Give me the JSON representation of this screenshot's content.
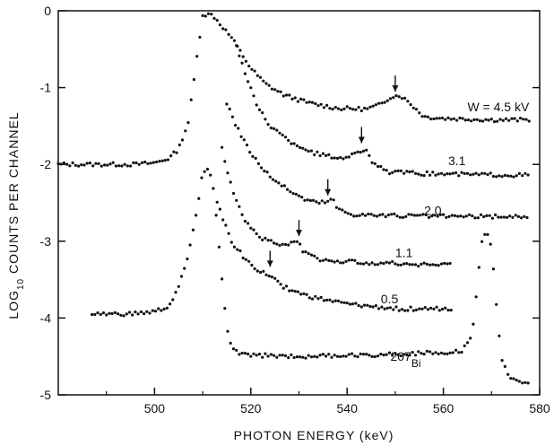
{
  "chart_data": {
    "type": "scatter",
    "xlabel": "PHOTON ENERGY (keV)",
    "ylabel_parts": {
      "prefix": "LOG",
      "subscript": "10",
      "suffix": " COUNTS PER CHANNEL"
    },
    "xlim": [
      480,
      580
    ],
    "ylim": [
      -5,
      0
    ],
    "xticks": [
      500,
      520,
      540,
      560,
      580
    ],
    "yticks": [
      0,
      -1,
      -2,
      -3,
      -4,
      -5
    ],
    "grid": false,
    "series": [
      {
        "label": "W = 4.5 kV",
        "label_at": [
          565,
          -1.25
        ],
        "arrow_x": 550,
        "arrow_tip_y": -1.1,
        "points": [
          [
            480,
            -2.0
          ],
          [
            496,
            -2.0
          ],
          [
            500,
            -1.98
          ],
          [
            503,
            -1.92
          ],
          [
            505,
            -1.8
          ],
          [
            507,
            -1.45
          ],
          [
            508,
            -1.0
          ],
          [
            509,
            -0.5
          ],
          [
            510,
            -0.05
          ],
          [
            512,
            -0.05
          ],
          [
            514,
            -0.2
          ],
          [
            516,
            -0.35
          ],
          [
            518,
            -0.55
          ],
          [
            520,
            -0.75
          ],
          [
            523,
            -0.95
          ],
          [
            527,
            -1.1
          ],
          [
            532,
            -1.2
          ],
          [
            538,
            -1.27
          ],
          [
            544,
            -1.28
          ],
          [
            547,
            -1.22
          ],
          [
            549,
            -1.12
          ],
          [
            551,
            -1.1
          ],
          [
            553,
            -1.2
          ],
          [
            556,
            -1.38
          ],
          [
            560,
            -1.4
          ],
          [
            570,
            -1.42
          ],
          [
            578,
            -1.42
          ]
        ]
      },
      {
        "label": "3.1",
        "label_at": [
          561,
          -1.95
        ],
        "arrow_x": 543,
        "arrow_tip_y": -1.77,
        "points": [
          [
            517,
            -0.45
          ],
          [
            519,
            -0.85
          ],
          [
            521,
            -1.2
          ],
          [
            524,
            -1.5
          ],
          [
            528,
            -1.7
          ],
          [
            533,
            -1.85
          ],
          [
            538,
            -1.92
          ],
          [
            541,
            -1.88
          ],
          [
            543,
            -1.82
          ],
          [
            544,
            -1.8
          ],
          [
            545,
            -1.95
          ],
          [
            548,
            -2.1
          ],
          [
            555,
            -2.12
          ],
          [
            565,
            -2.13
          ],
          [
            578,
            -2.14
          ]
        ]
      },
      {
        "label": "2.0",
        "label_at": [
          556,
          -2.6
        ],
        "arrow_x": 536,
        "arrow_tip_y": -2.45,
        "points": [
          [
            515,
            -1.2
          ],
          [
            517,
            -1.5
          ],
          [
            520,
            -1.85
          ],
          [
            523,
            -2.1
          ],
          [
            527,
            -2.3
          ],
          [
            531,
            -2.45
          ],
          [
            534,
            -2.5
          ],
          [
            536,
            -2.48
          ],
          [
            537,
            -2.45
          ],
          [
            538,
            -2.58
          ],
          [
            541,
            -2.65
          ],
          [
            550,
            -2.67
          ],
          [
            565,
            -2.68
          ],
          [
            578,
            -2.68
          ]
        ]
      },
      {
        "label": "1.1",
        "label_at": [
          550,
          -3.15
        ],
        "arrow_x": 530,
        "arrow_tip_y": -2.98,
        "points": [
          [
            514,
            -1.8
          ],
          [
            516,
            -2.3
          ],
          [
            519,
            -2.75
          ],
          [
            522,
            -2.95
          ],
          [
            526,
            -3.05
          ],
          [
            529,
            -3.02
          ],
          [
            530,
            -3.0
          ],
          [
            531,
            -3.15
          ],
          [
            535,
            -3.25
          ],
          [
            545,
            -3.28
          ],
          [
            555,
            -3.3
          ],
          [
            562,
            -3.3
          ]
        ]
      },
      {
        "label": "0.5",
        "label_at": [
          547,
          -3.75
        ],
        "arrow_x": 524,
        "arrow_tip_y": -3.38,
        "points": [
          [
            513,
            -2.5
          ],
          [
            516,
            -3.0
          ],
          [
            519,
            -3.25
          ],
          [
            522,
            -3.4
          ],
          [
            524,
            -3.45
          ],
          [
            527,
            -3.6
          ],
          [
            532,
            -3.72
          ],
          [
            540,
            -3.82
          ],
          [
            550,
            -3.88
          ],
          [
            562,
            -3.88
          ]
        ]
      },
      {
        "label": "207",
        "label_suffix": "Bi",
        "label_at": [
          549,
          -4.5
        ],
        "points": [
          [
            487,
            -3.95
          ],
          [
            495,
            -3.95
          ],
          [
            500,
            -3.92
          ],
          [
            503,
            -3.85
          ],
          [
            505,
            -3.6
          ],
          [
            507,
            -3.2
          ],
          [
            509,
            -2.5
          ],
          [
            510,
            -2.1
          ],
          [
            511,
            -2.05
          ],
          [
            512,
            -2.2
          ],
          [
            513,
            -2.8
          ],
          [
            514,
            -3.5
          ],
          [
            515,
            -4.1
          ],
          [
            516,
            -4.4
          ],
          [
            518,
            -4.48
          ],
          [
            530,
            -4.5
          ],
          [
            545,
            -4.48
          ],
          [
            560,
            -4.45
          ],
          [
            564,
            -4.42
          ],
          [
            566,
            -4.2
          ],
          [
            567,
            -3.6
          ],
          [
            568,
            -3.0
          ],
          [
            569,
            -2.88
          ],
          [
            570,
            -3.1
          ],
          [
            571,
            -3.8
          ],
          [
            572,
            -4.5
          ],
          [
            574,
            -4.8
          ],
          [
            578,
            -4.85
          ]
        ]
      }
    ]
  }
}
